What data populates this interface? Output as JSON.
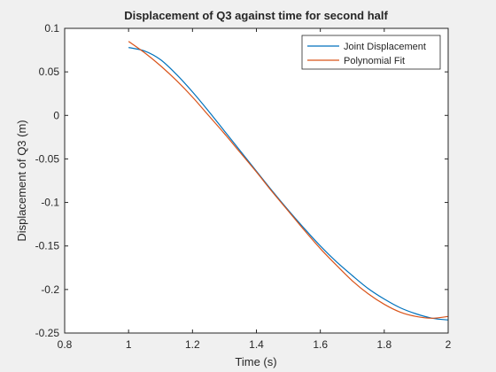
{
  "chart_data": {
    "type": "line",
    "title": "Displacement of Q3 against time for second half",
    "xlabel": "Time (s)",
    "ylabel": "Displacement of Q3 (m)",
    "xlim": [
      0.8,
      2.0
    ],
    "ylim": [
      -0.25,
      0.1
    ],
    "xticks": [
      0.8,
      1.0,
      1.2,
      1.4,
      1.6,
      1.8,
      2.0
    ],
    "xtick_labels": [
      "0.8",
      "1",
      "1.2",
      "1.4",
      "1.6",
      "1.8",
      "2"
    ],
    "yticks": [
      -0.25,
      -0.2,
      -0.15,
      -0.1,
      -0.05,
      0,
      0.05,
      0.1
    ],
    "ytick_labels": [
      "-0.25",
      "-0.2",
      "-0.15",
      "-0.1",
      "-0.05",
      "0",
      "0.05",
      "0.1"
    ],
    "grid": false,
    "legend": {
      "position": "top-right"
    },
    "series": [
      {
        "name": "Joint Displacement",
        "color": "#0072BD",
        "x": [
          1.0,
          1.05,
          1.1,
          1.15,
          1.2,
          1.25,
          1.3,
          1.35,
          1.4,
          1.45,
          1.5,
          1.55,
          1.6,
          1.65,
          1.7,
          1.75,
          1.8,
          1.85,
          1.9,
          1.95,
          2.0
        ],
        "y": [
          0.078,
          0.074,
          0.064,
          0.047,
          0.027,
          0.005,
          -0.018,
          -0.041,
          -0.064,
          -0.087,
          -0.109,
          -0.13,
          -0.15,
          -0.168,
          -0.184,
          -0.199,
          -0.211,
          -0.221,
          -0.228,
          -0.233,
          -0.235
        ]
      },
      {
        "name": "Polynomial Fit",
        "color": "#D95319",
        "x": [
          1.0,
          1.05,
          1.1,
          1.15,
          1.2,
          1.25,
          1.3,
          1.35,
          1.4,
          1.45,
          1.5,
          1.55,
          1.6,
          1.65,
          1.7,
          1.75,
          1.8,
          1.85,
          1.9,
          1.95,
          2.0
        ],
        "y": [
          0.085,
          0.072,
          0.057,
          0.04,
          0.021,
          0.0,
          -0.021,
          -0.043,
          -0.065,
          -0.088,
          -0.11,
          -0.132,
          -0.153,
          -0.172,
          -0.19,
          -0.205,
          -0.217,
          -0.226,
          -0.231,
          -0.233,
          -0.231
        ]
      }
    ]
  }
}
